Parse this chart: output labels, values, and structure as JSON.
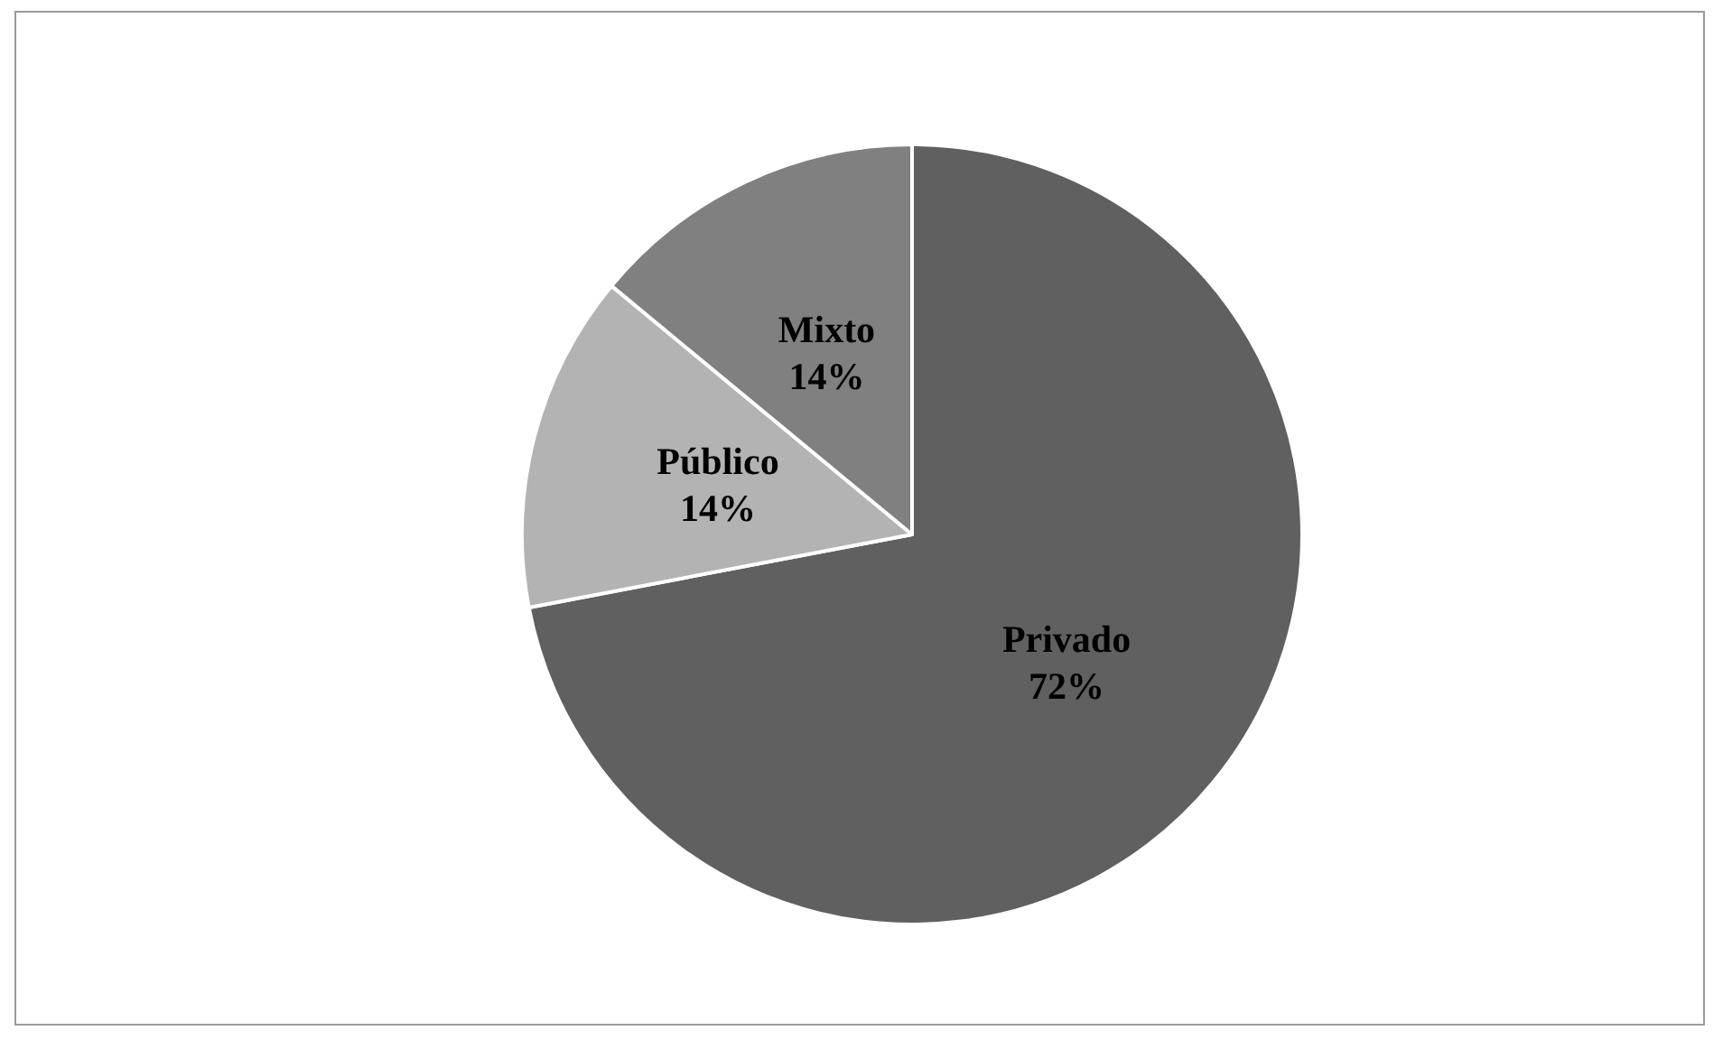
{
  "chart_data": {
    "type": "pie",
    "categories": [
      "Privado",
      "Público",
      "Mixto"
    ],
    "values": [
      72,
      14,
      14
    ],
    "value_labels": [
      "72%",
      "14%",
      "14%"
    ],
    "colors": [
      "#606060",
      "#b3b3b3",
      "#808080"
    ],
    "legend": false
  }
}
